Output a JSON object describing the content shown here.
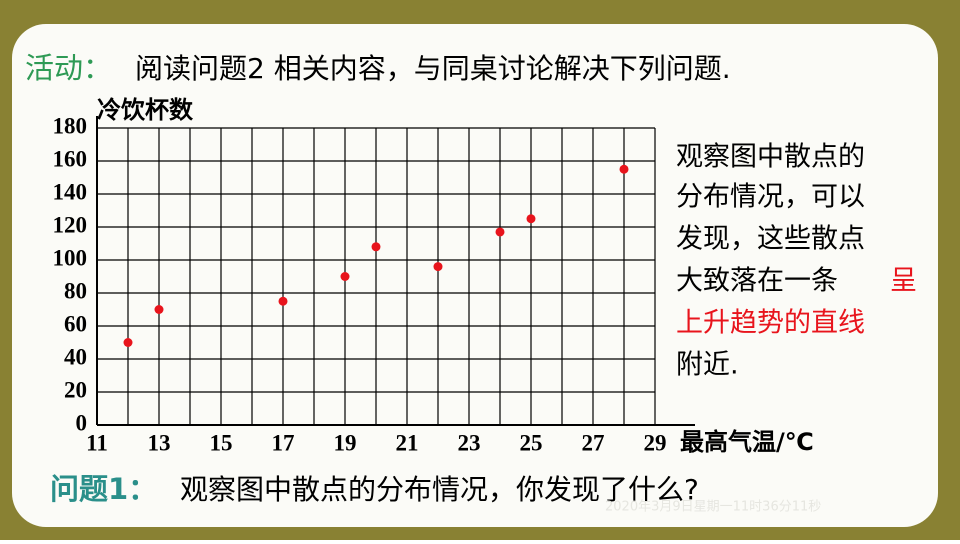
{
  "heading": {
    "label": "活动：",
    "text": "阅读问题2 相关内容，与同桌讨论解决下列问题."
  },
  "chart_data": {
    "type": "scatter",
    "y_label": "冷饮杯数",
    "x_label": "最高气温/℃",
    "x": [
      12,
      13,
      17,
      19,
      20,
      22,
      24,
      25,
      28
    ],
    "series": [
      {
        "color": "#e8141c",
        "values": [
          50,
          70,
          75,
          90,
          108,
          96,
          117,
          125,
          155
        ]
      }
    ],
    "xlim": [
      11,
      29
    ],
    "xticks": [
      11,
      13,
      15,
      17,
      19,
      21,
      23,
      25,
      27,
      29
    ],
    "xminorticks": [
      12,
      14,
      16,
      18,
      20,
      22,
      24,
      26,
      28
    ],
    "ylim": [
      0,
      180
    ],
    "yticks": [
      0,
      20,
      40,
      60,
      80,
      100,
      120,
      140,
      160,
      180
    ],
    "grid": true
  },
  "observation": {
    "lines": [
      "观察图中散点的",
      "分布情况，可以",
      "发现，这些散点",
      "大致落在一条"
    ],
    "highlight": [
      "呈",
      "上升趋势的直线"
    ],
    "end": "附近."
  },
  "question": {
    "label": "问题1：",
    "text": "观察图中散点的分布情况，你发现了什么?"
  },
  "timestamp": "2020年3月9日星期一11时36分11秒"
}
